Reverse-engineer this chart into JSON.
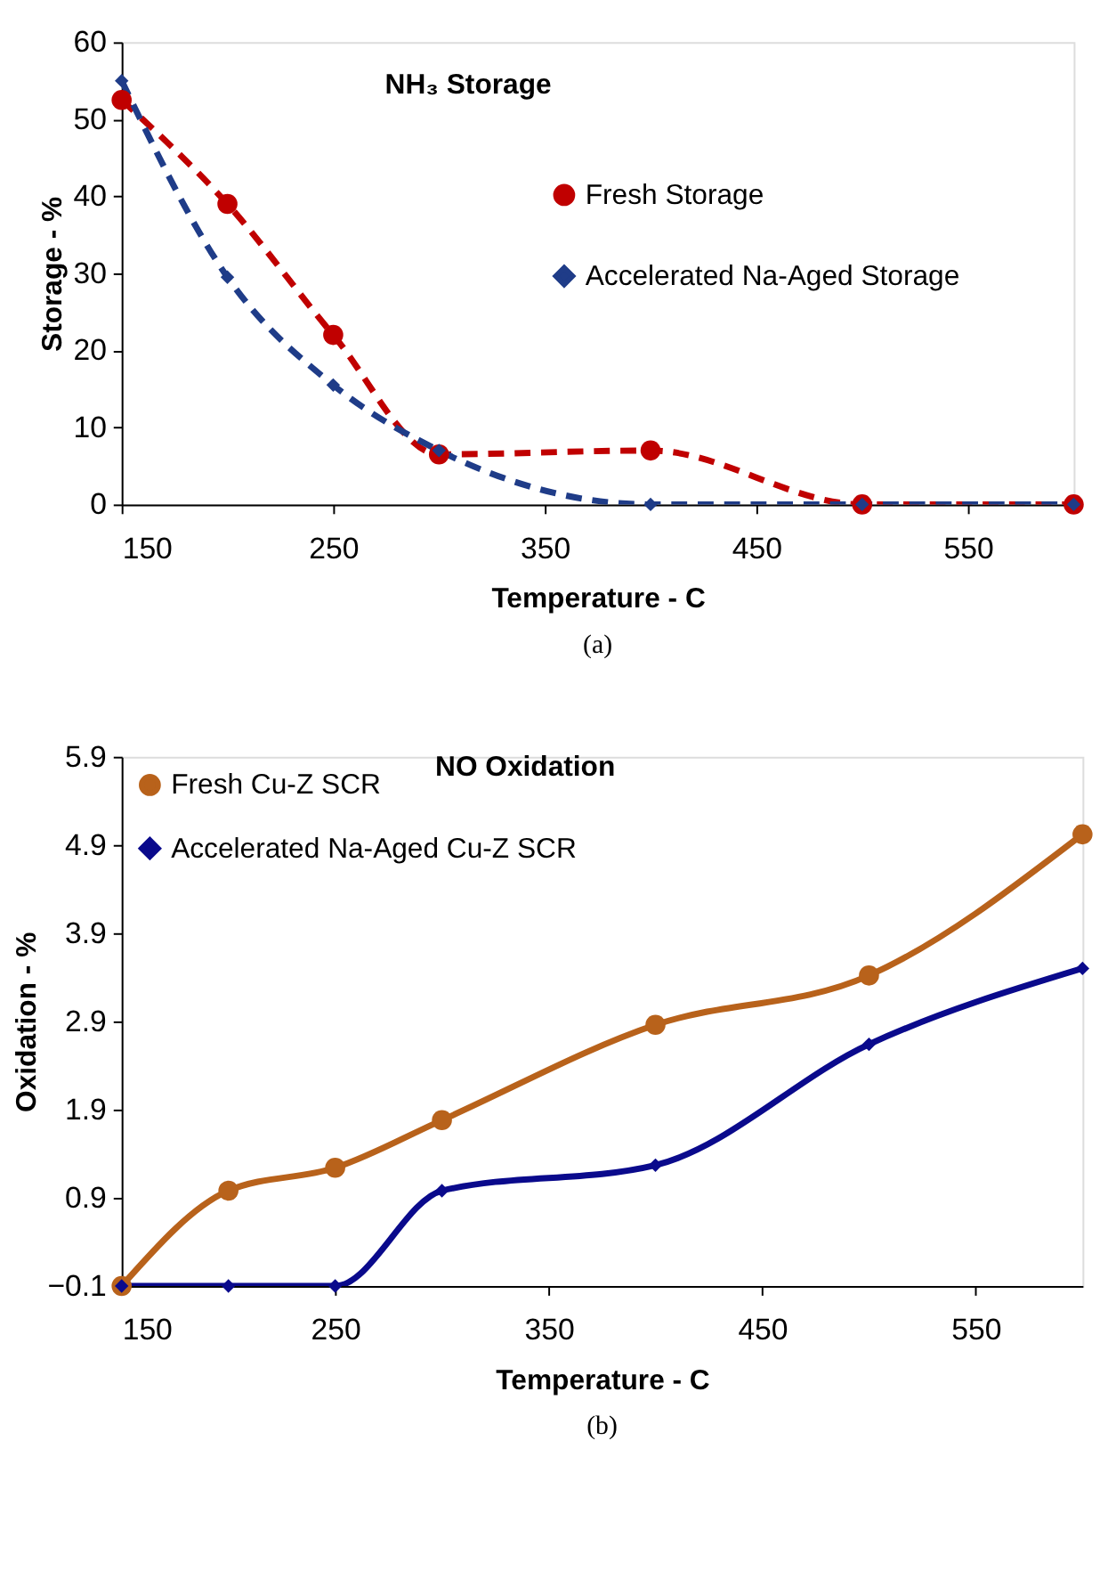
{
  "chart_data": [
    {
      "type": "line",
      "title": "NH₃ Storage",
      "xlabel": "Temperature - C",
      "ylabel": "Storage - %",
      "annotations": [
        "(a)"
      ],
      "xlim": [
        150,
        600
      ],
      "xticks": [
        150,
        250,
        350,
        450,
        550
      ],
      "ylim": [
        0,
        60
      ],
      "yticks": [
        0,
        10,
        20,
        30,
        40,
        50,
        60
      ],
      "line_style": "dashed",
      "legend": "right",
      "grid": false,
      "series": [
        {
          "name": "Fresh Storage",
          "color": "#c00000",
          "marker": "circle",
          "x": [
            150,
            200,
            250,
            300,
            400,
            500,
            600
          ],
          "values": [
            52.5,
            39,
            22,
            6.5,
            7,
            0,
            0
          ]
        },
        {
          "name": "Accelerated Na-Aged Storage",
          "color": "#1f3c88",
          "marker": "diamond",
          "x": [
            150,
            200,
            250,
            300,
            400,
            500,
            600
          ],
          "values": [
            55,
            29.5,
            15.5,
            7,
            0,
            0,
            0
          ]
        }
      ]
    },
    {
      "type": "line",
      "title": "NO Oxidation",
      "xlabel": "Temperature - C",
      "ylabel": "Oxidation - %",
      "annotations": [
        "(b)"
      ],
      "xlim": [
        150,
        600
      ],
      "xticks": [
        150,
        250,
        350,
        450,
        550
      ],
      "ylim": [
        -0.1,
        5.9
      ],
      "yticks": [
        -0.1,
        0.9,
        1.9,
        2.9,
        3.9,
        4.9,
        5.9
      ],
      "line_style": "solid",
      "legend": "top left",
      "grid": false,
      "series": [
        {
          "name": "Fresh Cu-Z SCR",
          "color": "#b8621b",
          "marker": "circle",
          "x": [
            150,
            200,
            250,
            300,
            400,
            500,
            600
          ],
          "values": [
            -0.1,
            0.98,
            1.24,
            1.78,
            2.86,
            3.42,
            5.02
          ]
        },
        {
          "name": "Accelerated Na-Aged Cu-Z SCR",
          "color": "#0a0a8c",
          "marker": "diamond",
          "x": [
            150,
            200,
            250,
            300,
            400,
            500,
            600
          ],
          "values": [
            -0.1,
            -0.1,
            -0.1,
            0.98,
            1.27,
            2.64,
            3.5
          ]
        }
      ]
    }
  ]
}
